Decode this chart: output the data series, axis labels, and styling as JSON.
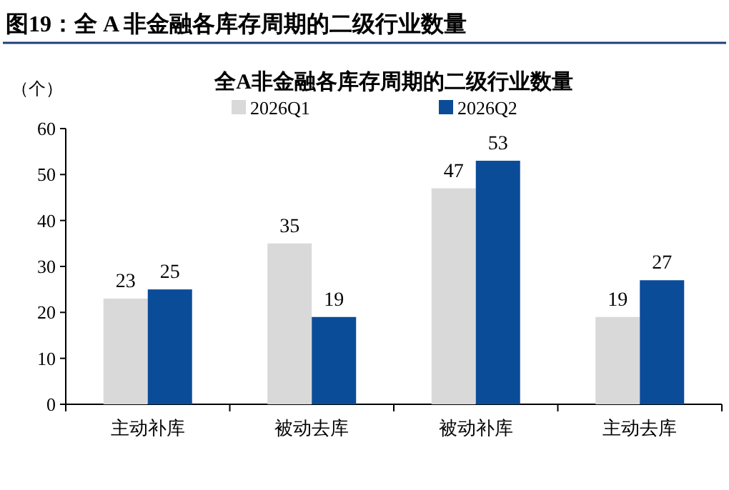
{
  "chart_data": {
    "type": "bar",
    "title": "图19：全 A 非金融各库存周期的二级行业数量",
    "subtitle": "全A非金融各库存周期的二级行业数量",
    "ylabel": "（个）",
    "categories": [
      "主动补库",
      "被动去库",
      "被动补库",
      "主动去库"
    ],
    "series": [
      {
        "name": "2026Q1",
        "color": "#d9d9d9",
        "values": [
          23,
          35,
          47,
          19
        ]
      },
      {
        "name": "2026Q2",
        "color": "#0b4c99",
        "values": [
          25,
          19,
          53,
          27
        ]
      }
    ],
    "ylim": [
      0,
      60
    ],
    "yticks": [
      0,
      10,
      20,
      30,
      40,
      50,
      60
    ],
    "data_labels": true,
    "legend": "top",
    "grid": false
  }
}
